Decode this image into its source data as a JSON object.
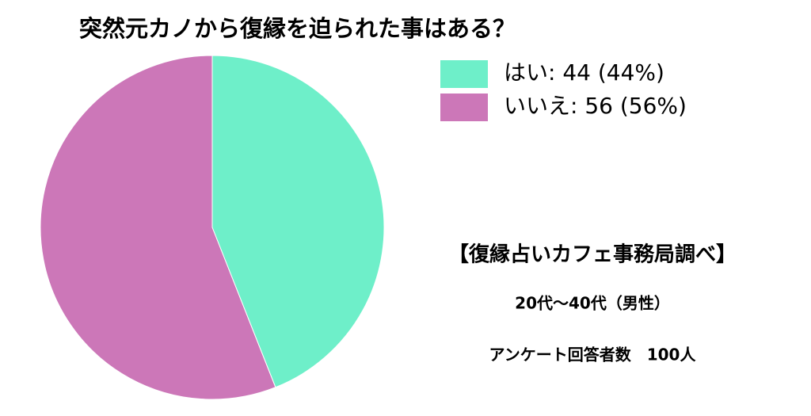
{
  "chart_data": {
    "type": "pie",
    "title": "突然元カノから復縁を迫られた事はある？",
    "categories": [
      "はい: 44 (44%)",
      "いいえ: 56 (56%)"
    ],
    "values": [
      44,
      56
    ],
    "colors": [
      "#6eefc9",
      "#cc77b8"
    ],
    "legend": "top-right",
    "annotations": [
      "【復縁占いカフェ事務局調べ】",
      "20代〜40代（男性）",
      "アンケート回答者数　100人"
    ]
  }
}
